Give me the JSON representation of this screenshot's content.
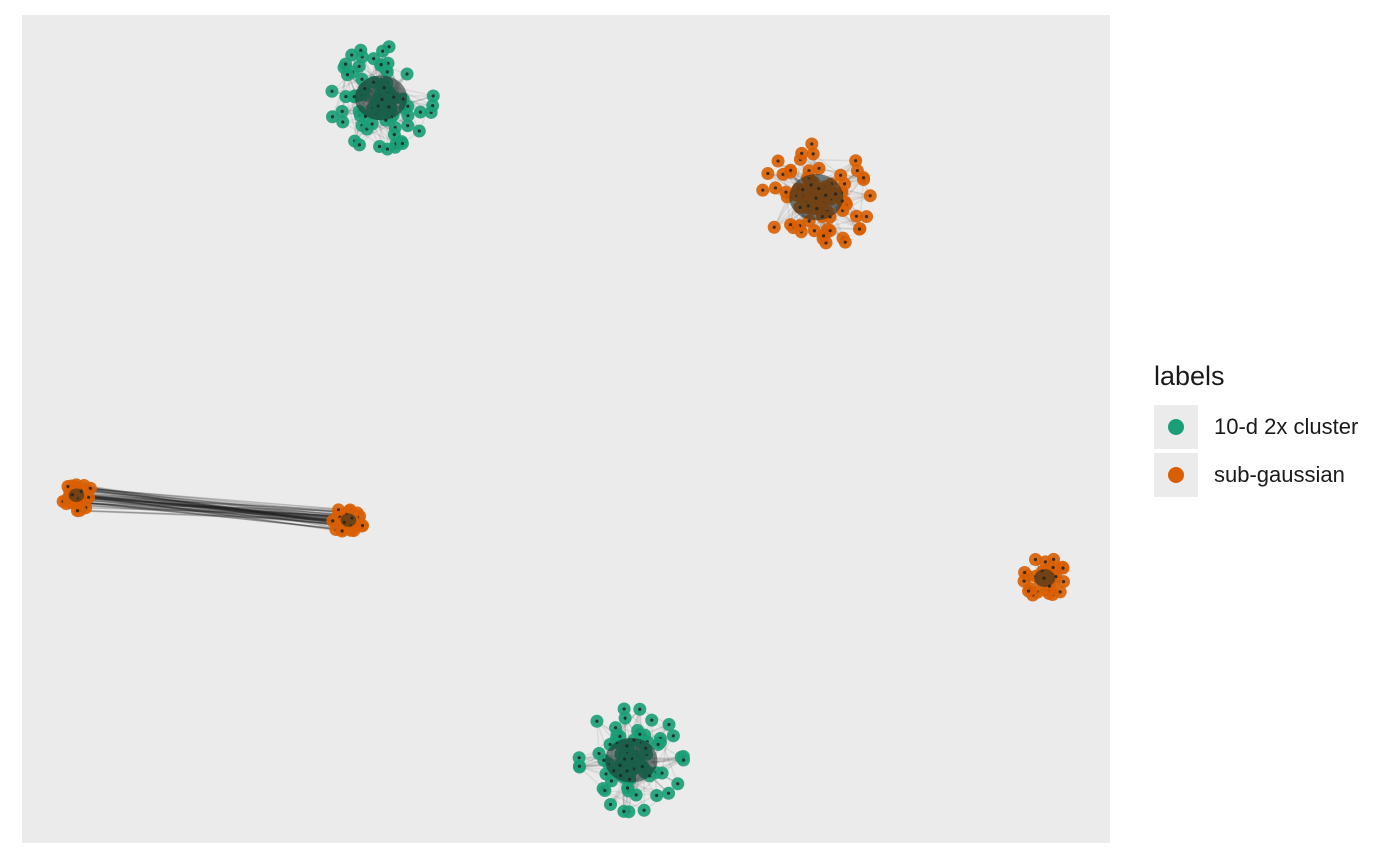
{
  "chart_data": {
    "type": "scatter",
    "title": "",
    "xlabel": "",
    "ylabel": "",
    "axes_visible": false,
    "grid": false,
    "panel_background": "#ebebeb",
    "legend_placement": "right",
    "legend_title": "labels",
    "series": [
      {
        "name": "10-d 2x cluster",
        "color": "#1b9e77"
      },
      {
        "name": "sub-gaussian",
        "color": "#d95f02"
      }
    ],
    "x_range": [
      0,
      1
    ],
    "y_range": [
      0,
      1
    ],
    "clusters": [
      {
        "series": "10-d 2x cluster",
        "center": [
          0.33,
          0.9
        ],
        "spread": 0.03,
        "n": 90
      },
      {
        "series": "sub-gaussian",
        "center": [
          0.73,
          0.78
        ],
        "spread": 0.031,
        "n": 90
      },
      {
        "series": "10-d 2x cluster",
        "center": [
          0.56,
          0.1
        ],
        "spread": 0.03,
        "n": 90
      },
      {
        "series": "sub-gaussian",
        "center": [
          0.05,
          0.42
        ],
        "spread": 0.009,
        "n": 50
      },
      {
        "series": "sub-gaussian",
        "center": [
          0.3,
          0.39
        ],
        "spread": 0.009,
        "n": 50
      },
      {
        "series": "sub-gaussian",
        "center": [
          0.94,
          0.32
        ],
        "spread": 0.012,
        "n": 40
      }
    ],
    "links": [
      {
        "from_cluster": 3,
        "to_cluster": 4,
        "color": "#1a1a1a"
      }
    ]
  }
}
